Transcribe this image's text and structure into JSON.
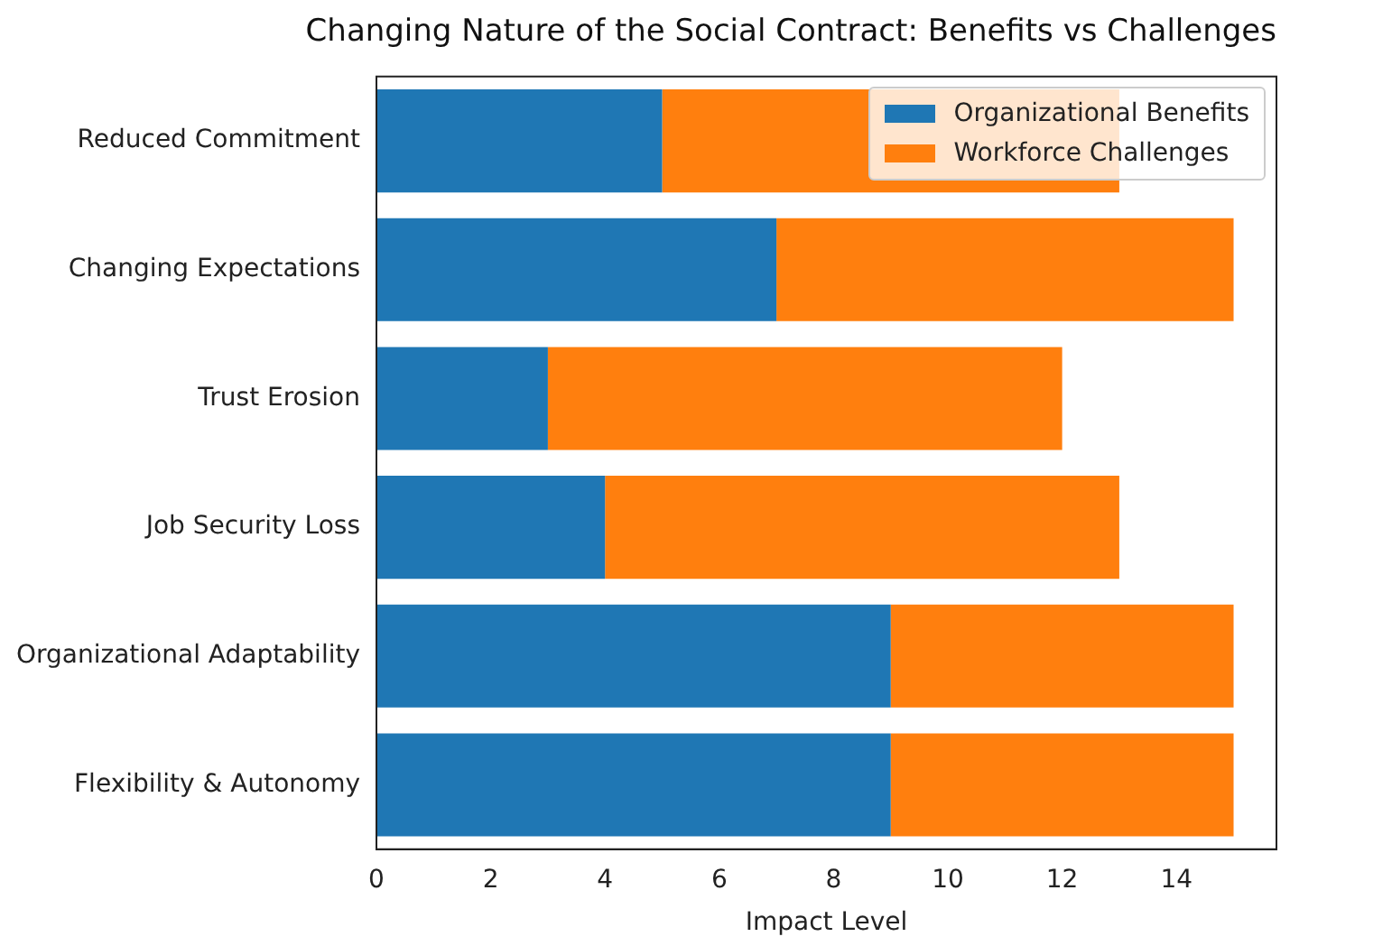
{
  "chart_data": {
    "type": "bar",
    "orientation": "horizontal",
    "stacked": true,
    "title": "Changing Nature of the Social Contract: Benefits vs Challenges",
    "xlabel": "Impact Level",
    "categories": [
      "Reduced Commitment",
      "Changing Expectations",
      "Trust Erosion",
      "Job Security Loss",
      "Organizational Adaptability",
      "Flexibility & Autonomy"
    ],
    "series": [
      {
        "name": "Organizational Benefits",
        "color": "#1f77b4",
        "values": [
          5,
          7,
          3,
          4,
          9,
          9
        ]
      },
      {
        "name": "Workforce Challenges",
        "color": "#ff7f0e",
        "values": [
          8,
          8,
          9,
          9,
          6,
          6
        ]
      }
    ],
    "xlim": [
      0,
      15.75
    ],
    "xticks": [
      0,
      2,
      4,
      6,
      8,
      10,
      12,
      14
    ],
    "grid": false,
    "legend": "top right"
  }
}
